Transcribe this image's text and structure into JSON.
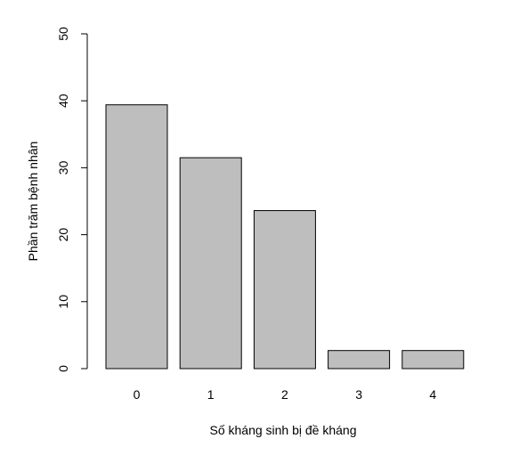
{
  "chart_data": {
    "type": "bar",
    "categories": [
      "0",
      "1",
      "2",
      "3",
      "4"
    ],
    "values": [
      39.4,
      31.5,
      23.6,
      2.7,
      2.7
    ],
    "title": "",
    "xlabel": "Số kháng sinh bị đề kháng",
    "ylabel": "Phần trăm bệnh nhân",
    "ylim": [
      0,
      50
    ],
    "yticks": [
      "0",
      "10",
      "20",
      "30",
      "40",
      "50"
    ],
    "bar_color": "#bebebe",
    "bar_edge_color": "#000000",
    "grid": false,
    "legend": "none"
  }
}
